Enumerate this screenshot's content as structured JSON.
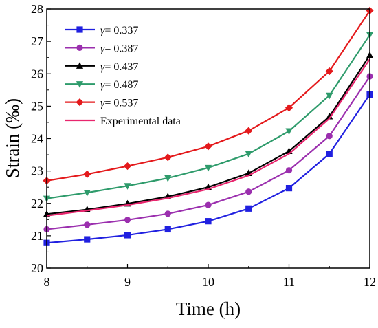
{
  "chart_data": {
    "type": "line",
    "title": "",
    "xlabel": "Time (h)",
    "ylabel": "Strain (‰)",
    "xlim": [
      8,
      12
    ],
    "ylim": [
      20,
      28
    ],
    "x": [
      8,
      8.5,
      9,
      9.5,
      10,
      10.5,
      11,
      11.5,
      12
    ],
    "x_ticks": [
      "8",
      "9",
      "10",
      "11",
      "12"
    ],
    "y_ticks": [
      "20",
      "21",
      "22",
      "23",
      "24",
      "25",
      "26",
      "27",
      "28"
    ],
    "legend_position": "top-left",
    "grid": false,
    "series": [
      {
        "name": "γ= 0.337",
        "name_symbol": "γ",
        "name_rest": "= 0.337",
        "color": "#2020e0",
        "marker": "square",
        "values": [
          20.78,
          20.89,
          21.02,
          21.2,
          21.45,
          21.84,
          22.47,
          23.53,
          25.36
        ]
      },
      {
        "name": "γ= 0.387",
        "name_symbol": "γ",
        "name_rest": "= 0.387",
        "color": "#9b2fae",
        "marker": "circle",
        "values": [
          21.2,
          21.34,
          21.49,
          21.68,
          21.95,
          22.36,
          23.02,
          24.08,
          25.92
        ]
      },
      {
        "name": "γ= 0.437",
        "name_symbol": "γ",
        "name_rest": "= 0.437",
        "color": "#000000",
        "marker": "triangle-up",
        "values": [
          21.67,
          21.81,
          21.99,
          22.21,
          22.5,
          22.93,
          23.61,
          24.68,
          26.57
        ]
      },
      {
        "name": "γ= 0.487",
        "name_symbol": "γ",
        "name_rest": "= 0.487",
        "color": "#2e9b6b",
        "marker": "triangle-down",
        "values": [
          22.15,
          22.33,
          22.54,
          22.78,
          23.1,
          23.53,
          24.23,
          25.33,
          27.2
        ]
      },
      {
        "name": "γ= 0.537",
        "name_symbol": "γ",
        "name_rest": "= 0.537",
        "color": "#e41a1c",
        "marker": "diamond",
        "values": [
          22.7,
          22.9,
          23.15,
          23.42,
          23.76,
          24.24,
          24.95,
          26.08,
          27.95
        ]
      },
      {
        "name": "Experimental data",
        "name_symbol": "",
        "name_rest": "Experimental data",
        "color": "#e8266e",
        "marker": "none",
        "values": [
          21.62,
          21.78,
          21.95,
          22.16,
          22.44,
          22.86,
          23.53,
          24.62,
          26.45
        ]
      }
    ]
  }
}
